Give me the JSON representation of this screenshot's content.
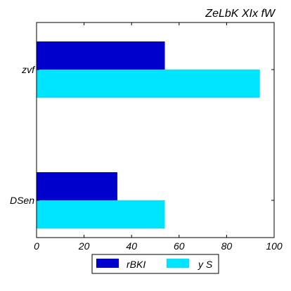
{
  "chart_data": {
    "type": "bar",
    "orientation": "horizontal",
    "title": "ZeLbK  XIx fW",
    "xlabel": "",
    "ylabel": "",
    "categories": [
      "zvf",
      "DSen"
    ],
    "series": [
      {
        "name": "rBKI",
        "values": [
          54,
          34
        ],
        "color": "#0000cc"
      },
      {
        "name": "y S",
        "values": [
          94,
          54
        ],
        "color": "#00e5ff"
      }
    ],
    "xlim": [
      0,
      100
    ],
    "xticks": [
      "0",
      "20",
      "40",
      "60",
      "80",
      "100"
    ],
    "grid": false,
    "legend_position": "bottom-center"
  }
}
